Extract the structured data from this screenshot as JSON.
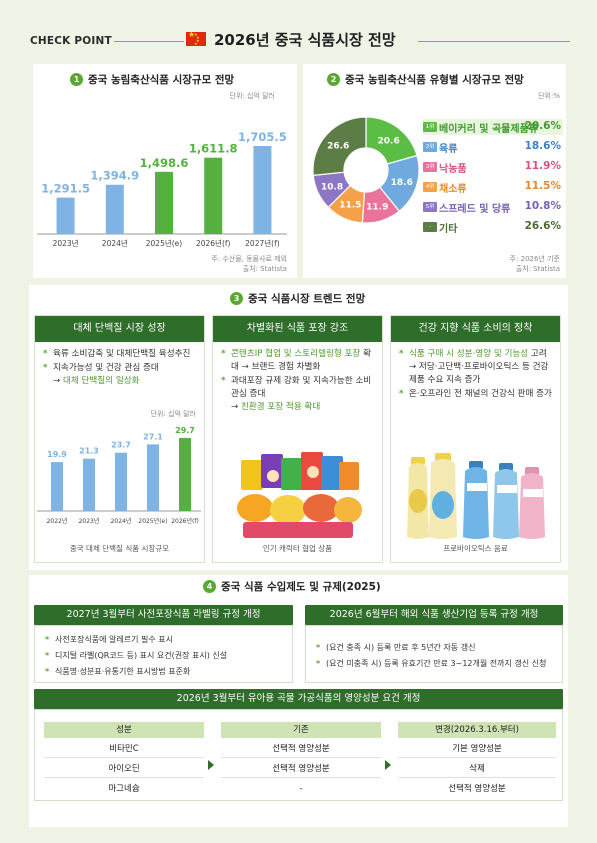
{
  "header": {
    "checkpoint": "CHECK POINT",
    "title": "2026년 중국 식품시장 전망"
  },
  "section1": {
    "num": "1",
    "title": "중국 농림축산식품 시장규모 전망",
    "unit": "단위: 십억 달러",
    "note1": "주: 수산물, 동물사료 제외",
    "note2": "출처: Statista",
    "chart_data": {
      "type": "bar",
      "categories": [
        "2023년",
        "2024년",
        "2025년(e)",
        "2026년(f)",
        "2027년(f)"
      ],
      "values": [
        1291.5,
        1394.9,
        1498.6,
        1611.8,
        1705.5
      ],
      "value_labels": [
        "1,291.5",
        "1,394.9",
        "1,498.6",
        "1,611.8",
        "1,705.5"
      ],
      "colors": [
        "#7fb3e3",
        "#7fb3e3",
        "#56b040",
        "#56b040",
        "#7fb3e3"
      ],
      "unit": "단위: 십억 달러"
    }
  },
  "section2": {
    "num": "2",
    "title": "중국 농림축산식품 유형별 시장규모 전망",
    "unit": "단위:%",
    "note1": "주: 2026년 기준",
    "note2": "출처: Statista",
    "chart_data": {
      "type": "pie",
      "labels": [
        "베이커리 및 곡물제품류",
        "육류",
        "낙농품",
        "채소류",
        "스프레드 및 당류",
        "기타"
      ],
      "values": [
        20.6,
        18.6,
        11.9,
        11.5,
        10.8,
        26.6
      ],
      "value_labels": [
        "20.6",
        "18.6",
        "11.9",
        "11.5",
        "10.8",
        "26.6"
      ],
      "legend_values": [
        "20.6%",
        "18.6%",
        "11.9%",
        "11.5%",
        "10.8%",
        "26.6%"
      ],
      "ranks": [
        "1위",
        "2위",
        "3위",
        "4위",
        "5위",
        "-"
      ],
      "colors": [
        "#5cbd44",
        "#6fa9dd",
        "#e9739a",
        "#f3a24a",
        "#8c77c4",
        "#5d7d46"
      ],
      "text_colors": [
        "#3f9a2b",
        "#3f7fc4",
        "#d9527f",
        "#e08a2a",
        "#7560b3",
        "#4a6b35"
      ]
    }
  },
  "section3": {
    "num": "3",
    "title": "중국 식품시장 트렌드 전망",
    "cards": [
      {
        "head": "대체 단백질 시장 성장",
        "b1": "육류 소비감축 및 대체단백질 육성추진",
        "b2": "지속가능성 및 건강 관심 증대",
        "b2_arrow": "→ ",
        "b2_green": "대체 단백질의 일상화",
        "unit": "단위: 십억 달러",
        "caption": "중국 대체 단백질 식품 시장규모",
        "chart_data": {
          "type": "bar",
          "categories": [
            "2022년",
            "2023년",
            "2024년",
            "2025년(e)",
            "2026년(f)"
          ],
          "values": [
            19.9,
            21.3,
            23.7,
            27.1,
            29.7
          ],
          "value_labels": [
            "19.9",
            "21.3",
            "23.7",
            "27.1",
            "29.7"
          ],
          "colors": [
            "#7fb3e3",
            "#7fb3e3",
            "#7fb3e3",
            "#7fb3e3",
            "#56b040"
          ]
        }
      },
      {
        "head": "차별화된 식품 포장 강조",
        "b1_green": "콘텐츠IP 협업 및 스토리텔링형 포장",
        "b1_rest": " 확대 → 브랜드 경험 차별화",
        "b2": "과대포장 규제 강화 및 지속가능한 소비 관심 증대",
        "b2_arrow": "→ ",
        "b2_green": "친환경 포장 적용 확대",
        "caption": "인기 캐릭터 협업 상품"
      },
      {
        "head": "건강 지향 식품 소비의 정착",
        "b1_green": "식품 구매 시 성분·영양 및 기능성",
        "b1_rest": " 고려 → 저당·고단백·프로바이오틱스 등 건강 제품 수요 지속 증가",
        "b2": "온·오프라인 전 채널의 건강식 판매 증가",
        "caption": "프로바이오틱스 음료"
      }
    ]
  },
  "section4": {
    "num": "4",
    "title": "중국 식품 수입제도 및 규제(2025)",
    "left_head": "2027년 3월부터 사전포장식품 라벨링 규정 개정",
    "left_items": [
      "사전포장식품에 알레르기 필수 표시",
      "디지털 라벨(QR코드 등) 표시 요건(권장 표시) 신설",
      "식품명·성분표·유통기한 표시방법 표준화"
    ],
    "right_head": "2026년 6월부터 해외 식품 생산기업 등록 규정 개정",
    "right_items": [
      "(요건 충족 시) 등록 만료 후 5년간 자동 갱신",
      "(요건 미충족 시) 등록 유효기간 만료 3~12개월 전까지 갱신 신청"
    ],
    "bottom_head": "2026년 3월부터 유아용 곡물 가공식품의 영양성분 요건 개정",
    "table": {
      "col1_head": "성분",
      "col2_head": "기존",
      "col3_head": "변경(2026.3.16.부터)",
      "col1": [
        "비타민C",
        "아이오딘",
        "마그네슘"
      ],
      "col2": [
        "선택적 영양성분",
        "선택적 영양성분",
        "-"
      ],
      "col3": [
        "기본 영양성분",
        "삭제",
        "선택적 영양성분"
      ]
    }
  }
}
